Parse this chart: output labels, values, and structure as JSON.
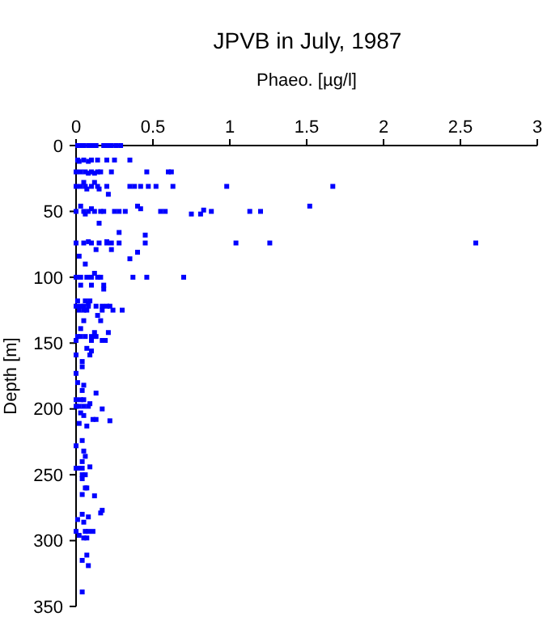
{
  "chart_data": {
    "type": "scatter",
    "title": "JPVB in July, 1987",
    "xlabel": "Phaeo. [µg/l]",
    "ylabel": "Depth [m]",
    "xlim": [
      0,
      3
    ],
    "xticks": [
      0,
      0.5,
      1,
      1.5,
      2,
      2.5,
      3
    ],
    "ylim": [
      350,
      0
    ],
    "yticks": [
      0,
      50,
      100,
      150,
      200,
      250,
      300,
      350
    ],
    "grid": false,
    "marker": "square",
    "series": [
      {
        "color": "#0000ff",
        "x": [
          0.01,
          0.03,
          0.05,
          0.08,
          0.1,
          0.13,
          0.18,
          0.2,
          0.23,
          0.26,
          0.29,
          0.01,
          0.05,
          0.1,
          0.14,
          0.2,
          0.25,
          0.35,
          0.02,
          0.08,
          0.0,
          0.03,
          0.06,
          0.1,
          0.14,
          0.16,
          0.23,
          0.46,
          0.6,
          0.62,
          0.08,
          0.12,
          0.05,
          0.12,
          0.0,
          0.03,
          0.06,
          0.1,
          0.14,
          0.2,
          0.35,
          0.38,
          0.42,
          0.47,
          0.52,
          0.63,
          0.98,
          1.67,
          0.07,
          0.15,
          0.21,
          0.03,
          1.52,
          0.4,
          0.1,
          0.42,
          0.0,
          0.05,
          0.08,
          0.12,
          0.16,
          0.18,
          0.25,
          0.28,
          0.32,
          0.55,
          0.58,
          0.88,
          1.13,
          1.2,
          0.75,
          0.81,
          0.06,
          0.83,
          0.15,
          0.28,
          0.45,
          0.0,
          0.05,
          0.1,
          0.15,
          0.2,
          0.23,
          0.28,
          0.45,
          1.04,
          1.26,
          2.6,
          0.2,
          0.08,
          0.13,
          0.23,
          0.4,
          0.02,
          0.35,
          0.06,
          0.0,
          0.03,
          0.07,
          0.1,
          0.14,
          0.16,
          0.37,
          0.46,
          0.7,
          0.12,
          0.03,
          0.1,
          0.18,
          0.18,
          0.01,
          0.06,
          0.09,
          0.08,
          0.0,
          0.03,
          0.05,
          0.08,
          0.13,
          0.17,
          0.2,
          0.22,
          0.3,
          0.02,
          0.05,
          0.07,
          0.17,
          0.24,
          0.14,
          0.05,
          0.16,
          0.03,
          0.12,
          0.21,
          0.01,
          0.03,
          0.06,
          0.1,
          0.13,
          0.0,
          0.1,
          0.17,
          0.19,
          0.07,
          0.1,
          0.09,
          0.0,
          0.04,
          0.04,
          0.0,
          0.01,
          0.05,
          0.04,
          0.13,
          0.0,
          0.03,
          0.05,
          0.09,
          0.0,
          0.02,
          0.05,
          0.08,
          0.17,
          0.03,
          0.05,
          0.11,
          0.13,
          0.22,
          0.02,
          0.07,
          0.04,
          0.0,
          0.05,
          0.06,
          0.04,
          0.09,
          0.0,
          0.02,
          0.04,
          0.04,
          0.06,
          0.04,
          0.06,
          0.07,
          0.04,
          0.12,
          0.17,
          0.16,
          0.04,
          0.08,
          0.01,
          0.05,
          0.0,
          0.06,
          0.08,
          0.11,
          0.02,
          0.05,
          0.07,
          0.07,
          0.04,
          0.08,
          0.04
        ],
        "values": [
          0,
          0,
          0,
          0,
          0,
          0,
          0,
          0,
          0,
          0,
          0,
          11,
          11,
          11,
          11,
          11,
          11,
          11,
          12,
          12,
          20,
          20,
          20,
          20,
          20,
          20,
          20,
          20,
          20,
          20,
          21,
          21,
          28,
          28,
          31,
          31,
          31,
          31,
          31,
          31,
          31,
          31,
          31,
          31,
          31,
          31,
          31,
          31,
          33,
          33,
          37,
          46,
          46,
          46,
          48,
          48,
          50,
          50,
          50,
          50,
          50,
          50,
          50,
          50,
          50,
          50,
          50,
          50,
          50,
          50,
          52,
          52,
          52,
          49,
          59,
          66,
          68,
          74,
          74,
          74,
          74,
          74,
          74,
          74,
          74,
          74,
          74,
          74,
          73,
          73,
          79,
          79,
          81,
          84,
          86,
          90,
          100,
          100,
          100,
          100,
          100,
          100,
          100,
          100,
          100,
          97,
          106,
          106,
          106,
          109,
          118,
          118,
          118,
          120,
          122,
          122,
          122,
          122,
          122,
          122,
          122,
          122,
          125,
          125,
          125,
          125,
          125,
          125,
          129,
          133,
          133,
          139,
          142,
          142,
          145,
          145,
          145,
          145,
          145,
          148,
          148,
          148,
          148,
          154,
          156,
          159,
          159,
          164,
          168,
          173,
          180,
          182,
          186,
          188,
          193,
          193,
          193,
          196,
          198,
          198,
          198,
          198,
          200,
          203,
          205,
          208,
          208,
          209,
          211,
          213,
          224,
          228,
          232,
          236,
          240,
          244,
          245,
          245,
          245,
          250,
          250,
          253,
          260,
          260,
          265,
          266,
          277,
          279,
          280,
          282,
          284,
          286,
          293,
          293,
          293,
          293,
          296,
          298,
          298,
          311,
          315,
          319,
          339
        ]
      }
    ]
  }
}
